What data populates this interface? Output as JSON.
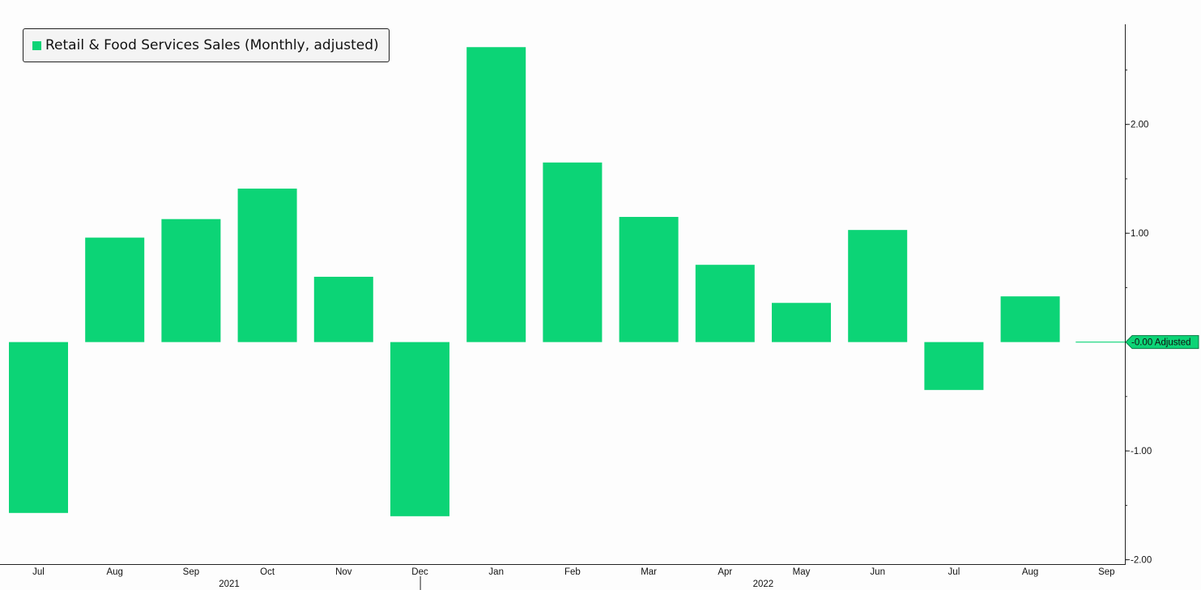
{
  "legend": {
    "label": "Retail & Food Services Sales (Monthly, adjusted)"
  },
  "last_value_badge": {
    "text": "-0.00 Adjusted"
  },
  "colors": {
    "bar": "#0cd476",
    "axis": "#222222",
    "background": "#fdfdfd"
  },
  "chart_data": {
    "type": "bar",
    "title": "",
    "xlabel": "",
    "ylabel": "",
    "categories": [
      "Jul",
      "Aug",
      "Sep",
      "Oct",
      "Nov",
      "Dec",
      "Jan",
      "Feb",
      "Mar",
      "Apr",
      "May",
      "Jun",
      "Jul",
      "Aug",
      "Sep"
    ],
    "year_labels": [
      {
        "label": "2021",
        "category_index": 2.5
      },
      {
        "label": "2022",
        "category_index": 9.5
      }
    ],
    "series": [
      {
        "name": "Retail & Food Services Sales (Monthly, adjusted)",
        "values": [
          -1.57,
          0.96,
          1.13,
          1.41,
          0.6,
          -1.6,
          2.71,
          1.65,
          1.15,
          0.71,
          0.36,
          1.03,
          -0.44,
          0.42,
          -0.0
        ]
      }
    ],
    "ylim": [
      -2.04,
      2.92
    ],
    "yticks": [
      2.0,
      1.0,
      -1.0,
      -2.0
    ],
    "ytick_labels": [
      "2.00",
      "1.00",
      "-1.00",
      "-2.00"
    ],
    "y_axis_position": "right",
    "legend_position": "top-left",
    "grid": false
  }
}
